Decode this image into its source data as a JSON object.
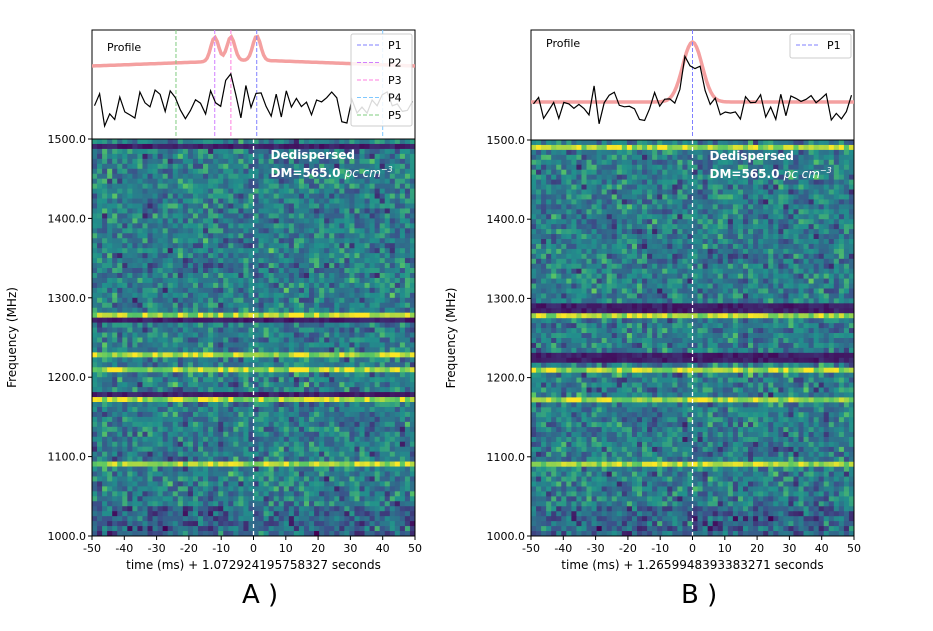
{
  "figure": {
    "panel_letters": [
      "A )",
      "B )"
    ]
  },
  "chart_data": [
    {
      "type": "heatmap",
      "panel": "A",
      "profile": {
        "label": "Profile",
        "legend": [
          "P1",
          "P2",
          "P3",
          "P4",
          "P5"
        ],
        "legend_colors": [
          "#7f7fff",
          "#d07fff",
          "#ff7fdf",
          "#7fc8ff",
          "#7fcc7f"
        ],
        "component_times_ms": [
          1,
          -12,
          -7,
          40,
          -24
        ],
        "fit_peak_times_ms": [
          -12,
          -7,
          1
        ],
        "fit_color": "#f4a0a0",
        "series_color": "#000000"
      },
      "annotation_title": "Dedispersed",
      "annotation_dm": "DM=565.0",
      "annotation_unit": "pc cm",
      "annotation_exp": "−3",
      "xlabel": "time (ms) + 1.072924195758327 seconds",
      "ylabel": "Frequency (MHz)",
      "xlim": [
        -50,
        50
      ],
      "ylim": [
        1000,
        1500
      ],
      "x_ticks": [
        "-50",
        "-40",
        "-30",
        "-20",
        "-10",
        "0",
        "10",
        "20",
        "30",
        "40",
        "50"
      ],
      "y_ticks": [
        "1000.0",
        "1100.0",
        "1200.0",
        "1300.0",
        "1400.0",
        "1500.0"
      ],
      "marker_time_ms": 0,
      "bright_bands_mhz": [
        1088,
        1170,
        1180,
        1207,
        1228,
        1270,
        1278
      ],
      "dark_bands_mhz": [
        1176,
        1272,
        1490
      ],
      "colormap": "viridis"
    },
    {
      "type": "heatmap",
      "panel": "B",
      "profile": {
        "label": "Profile",
        "legend": [
          "P1"
        ],
        "legend_colors": [
          "#7f7fff"
        ],
        "component_times_ms": [
          0
        ],
        "fit_peak_times_ms": [
          0
        ],
        "fit_color": "#f4a0a0",
        "series_color": "#000000"
      },
      "annotation_title": "Dedispersed",
      "annotation_dm": "DM=565.0",
      "annotation_unit": "pc cm",
      "annotation_exp": "−3",
      "xlabel": "time (ms) + 1.2659948393383271 seconds",
      "ylabel": "Frequency (MHz)",
      "xlim": [
        -50,
        50
      ],
      "ylim": [
        1000,
        1500
      ],
      "x_ticks": [
        "-50",
        "-40",
        "-30",
        "-20",
        "-10",
        "0",
        "10",
        "20",
        "30",
        "40",
        "50"
      ],
      "y_ticks": [
        "1000.0",
        "1100.0",
        "1200.0",
        "1300.0",
        "1400.0",
        "1500.0"
      ],
      "marker_time_ms": 0,
      "bright_bands_mhz": [
        1088,
        1172,
        1207,
        1278,
        1280,
        1488
      ],
      "dark_bands_mhz": [
        1290,
        1285,
        1225
      ],
      "colormap": "viridis"
    }
  ]
}
